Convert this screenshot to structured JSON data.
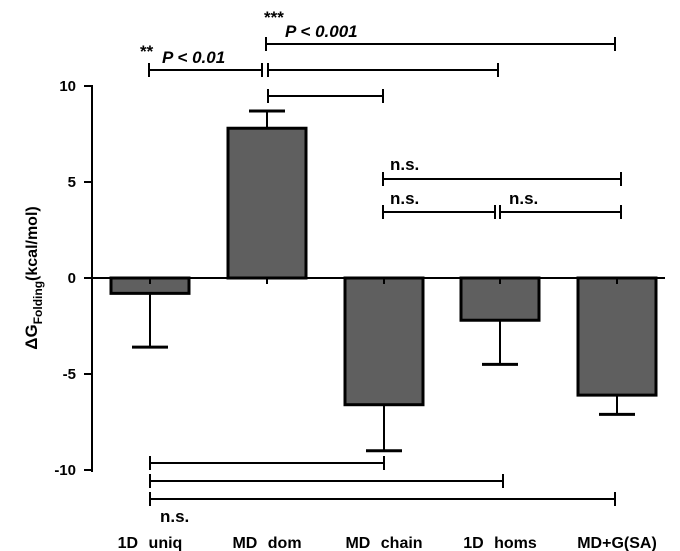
{
  "chart_data": {
    "type": "bar",
    "categories": [
      "1D uniq",
      "MD dom",
      "MD chain",
      "1D homs",
      "MD+G(SA)"
    ],
    "values": [
      -0.8,
      7.8,
      -6.6,
      -2.2,
      -6.1
    ],
    "error_bars": [
      {
        "end": -3.6
      },
      {
        "end": 8.7
      },
      {
        "end": -9.0
      },
      {
        "end": -4.5
      },
      {
        "end": -7.1
      }
    ],
    "ylabel_main": "ΔG",
    "ylabel_sub": "Folding",
    "ylabel_unit": "(kcal/mol)",
    "ylim": [
      -10,
      10
    ],
    "yticks": [
      "-10",
      "-5",
      "0",
      "5",
      "10"
    ],
    "bar_color": "#5f5f5f",
    "annotations": {
      "stars_01": "**",
      "p_01": "P < 0.01",
      "stars_001": "***",
      "p_001": "P < 0.001",
      "ns_top": "n.s.",
      "ns_mid_left": "n.s.",
      "ns_mid_right": "n.s.",
      "ns_bottom": "n.s."
    }
  }
}
